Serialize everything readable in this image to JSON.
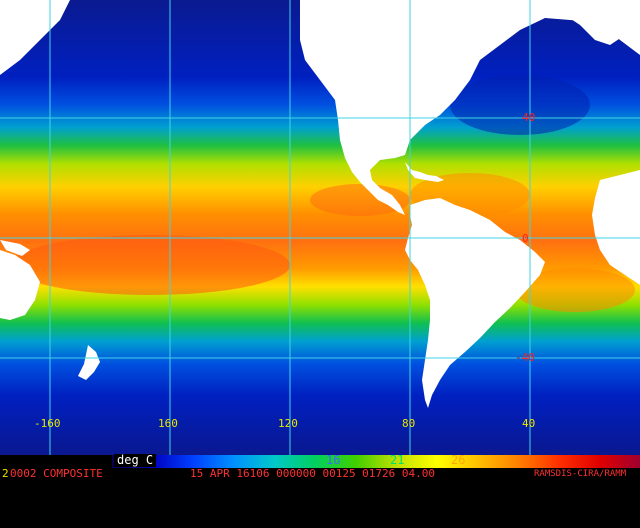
{
  "map": {
    "colors": {
      "land": "#ffffff",
      "grid": "#3fd4e6",
      "lat_label": "#ff2020",
      "lon_label": "#e8e800",
      "background": "#000000"
    },
    "lat_labels": [
      "40",
      "0",
      "-40"
    ],
    "lon_labels": [
      "-160",
      "160",
      "120",
      "80",
      "40"
    ]
  },
  "legend": {
    "unit": "deg C",
    "ticks": [
      "16",
      "21",
      "26"
    ],
    "tick_colors": [
      "#3b6cff",
      "#00e070",
      "#ffaa00"
    ],
    "gradient": [
      "#0a0050",
      "#0000c0",
      "#0040ff",
      "#0090ff",
      "#00c8c8",
      "#00d060",
      "#40d000",
      "#c0e000",
      "#ffff00",
      "#ffc000",
      "#ff8000",
      "#ff3000",
      "#e00000",
      "#a00030"
    ]
  },
  "footer": {
    "prefix_digit": "2",
    "left": "0002 COMPOSITE",
    "middle": "15 APR 16106 000000 00125 01726 04.00",
    "right": "RAMSDIS-CIRA/RAMM"
  }
}
